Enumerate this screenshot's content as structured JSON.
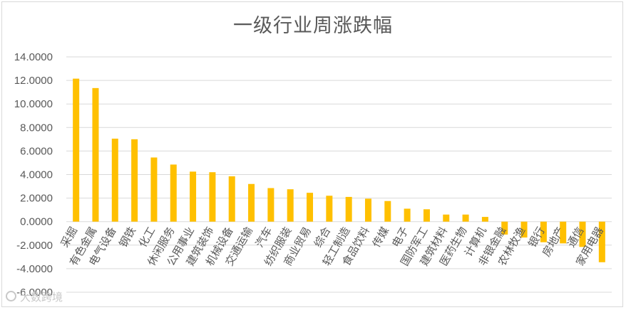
{
  "chart_data": {
    "type": "bar",
    "title": "一级行业周涨跌幅",
    "xlabel": "",
    "ylabel": "",
    "ylim": [
      -6,
      14
    ],
    "yticks": [
      "14.0000",
      "12.0000",
      "10.0000",
      "8.0000",
      "6.0000",
      "4.0000",
      "2.0000",
      "0.0000",
      "-2.0000",
      "-4.0000",
      "-6.0000"
    ],
    "grid": true,
    "legend": "none",
    "bar_color": "#ffc000",
    "categories": [
      "采掘",
      "有色金属",
      "电气设备",
      "钢铁",
      "化工",
      "休闲服务",
      "公用事业",
      "建筑装饰",
      "机械设备",
      "交通运输",
      "汽车",
      "纺织服装",
      "商业贸易",
      "综合",
      "轻工制造",
      "食品饮料",
      "传媒",
      "电子",
      "国防军工",
      "建筑材料",
      "医药生物",
      "计算机",
      "非银金融",
      "农林牧渔",
      "银行",
      "房地产",
      "通信",
      "家用电器"
    ],
    "values": [
      12.15,
      11.35,
      7.05,
      7.0,
      5.45,
      4.85,
      4.25,
      4.2,
      3.85,
      3.2,
      2.85,
      2.75,
      2.45,
      2.2,
      2.1,
      1.95,
      1.75,
      1.1,
      1.05,
      0.6,
      0.6,
      0.4,
      -1.1,
      -1.35,
      -1.75,
      -1.85,
      -2.15,
      -3.45
    ]
  },
  "watermark": {
    "text": "大数跨境",
    "icon": "watermark-logo-icon"
  }
}
